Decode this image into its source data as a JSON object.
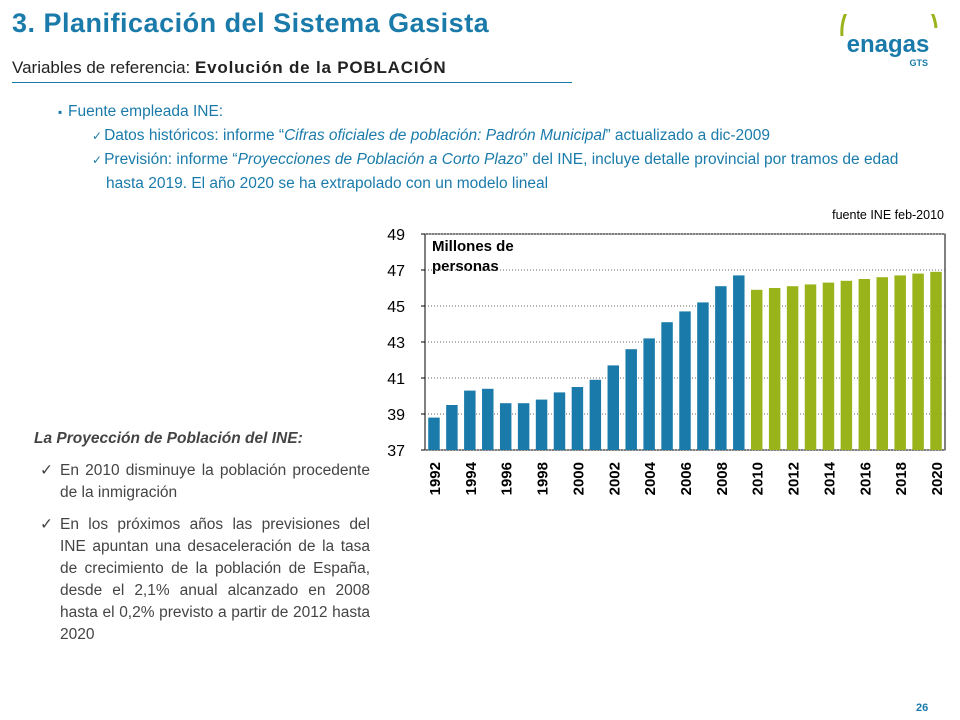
{
  "header": {
    "title": "3. Planificación del Sistema Gasista",
    "subtitle_label": "Variables de referencia:",
    "subtitle_emphasis": "Evolución de la POBLACIÓN"
  },
  "logo": {
    "name": "enagas",
    "sub": "GTS"
  },
  "source": {
    "lead": "Fuente empleada INE:",
    "items": [
      {
        "parts": [
          {
            "text": "Datos históricos: informe “",
            "italic": false
          },
          {
            "text": "Cifras oficiales de población: Padrón Municipal",
            "italic": true
          },
          {
            "text": "” actualizado a dic-2009",
            "italic": false
          }
        ]
      },
      {
        "parts": [
          {
            "text": "Previsión: informe “",
            "italic": false
          },
          {
            "text": "Proyecciones de Población a Corto Plazo",
            "italic": true
          },
          {
            "text": "” del INE, incluye detalle provincial por tramos de edad hasta 2019. El año 2020 se ha extrapolado con un modelo lineal",
            "italic": false
          }
        ]
      }
    ]
  },
  "note": {
    "heading": "La Proyección de Población del INE:",
    "items": [
      "En 2010 disminuye la población procedente de la inmigración",
      "En los próximos años las previsiones del INE apuntan una desaceleración de la tasa de crecimiento de la población de España, desde el 2,1% anual alcanzado en 2008 hasta el 0,2% previsto a partir de 2012 hasta 2020"
    ]
  },
  "page_number": "26",
  "chart_data": {
    "type": "bar",
    "y_label": [
      "Millones de",
      "personas"
    ],
    "annotation": "fuente INE feb-2010",
    "categories": [
      "1992",
      null,
      "1994",
      null,
      "1996",
      null,
      "1998",
      null,
      "2000",
      null,
      "2002",
      null,
      "2004",
      null,
      "2006",
      null,
      "2008",
      null,
      "2010",
      null,
      "2012",
      null,
      "2014",
      null,
      "2016",
      null,
      "2018",
      null,
      "2020"
    ],
    "values": [
      38.8,
      39.5,
      40.3,
      40.4,
      39.6,
      39.6,
      39.8,
      40.2,
      40.5,
      40.9,
      41.7,
      42.6,
      43.2,
      44.1,
      44.7,
      45.2,
      46.1,
      46.7,
      45.9,
      46.0,
      46.1,
      46.2,
      46.3,
      46.4,
      46.5,
      46.6,
      46.7,
      46.8,
      46.9
    ],
    "colors": [
      "#1a7bab",
      "#1a7bab",
      "#1a7bab",
      "#1a7bab",
      "#1a7bab",
      "#1a7bab",
      "#1a7bab",
      "#1a7bab",
      "#1a7bab",
      "#1a7bab",
      "#1a7bab",
      "#1a7bab",
      "#1a7bab",
      "#1a7bab",
      "#1a7bab",
      "#1a7bab",
      "#1a7bab",
      "#1a7bab",
      "#99b31a",
      "#99b31a",
      "#99b31a",
      "#99b31a",
      "#99b31a",
      "#99b31a",
      "#99b31a",
      "#99b31a",
      "#99b31a",
      "#99b31a",
      "#99b31a"
    ],
    "ylim": [
      37,
      49
    ],
    "yticks": [
      37,
      39,
      41,
      43,
      45,
      47,
      49
    ],
    "grid": true
  }
}
